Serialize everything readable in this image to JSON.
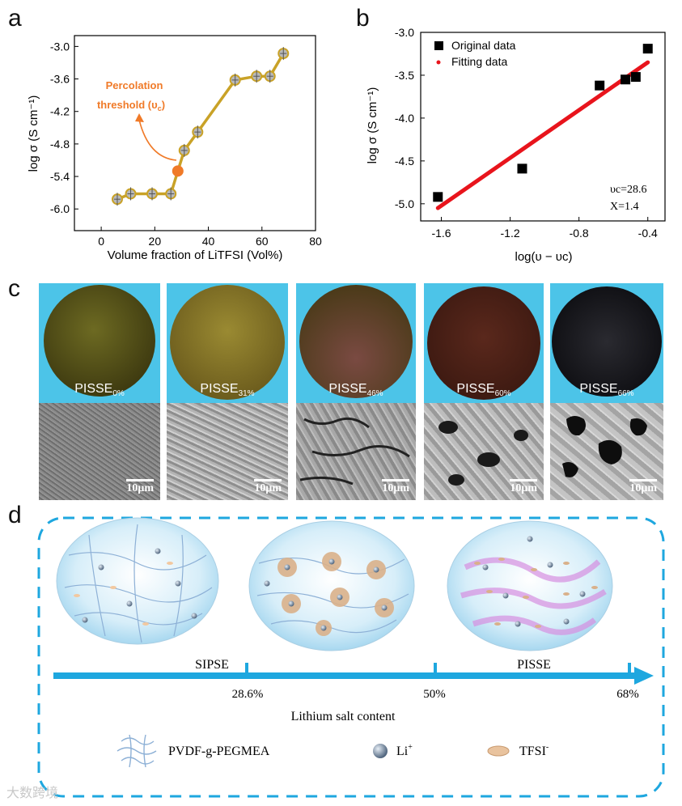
{
  "panels": {
    "a": "a",
    "b": "b",
    "c": "c",
    "d": "d"
  },
  "chart_data": [
    {
      "type": "line",
      "panel": "a",
      "xlabel": "Volume fraction of LiTFSI (Vol%)",
      "ylabel": "log σ (S cm⁻¹)",
      "x": [
        6,
        11,
        19,
        26,
        28.6,
        31,
        36,
        50,
        58,
        63,
        68
      ],
      "y": [
        -5.82,
        -5.72,
        -5.72,
        -5.72,
        -5.3,
        -4.92,
        -4.58,
        -3.62,
        -3.55,
        -3.55,
        -3.13
      ],
      "xlim": [
        -10,
        80
      ],
      "ylim": [
        -6.4,
        -2.8
      ],
      "xticks": [
        0,
        20,
        40,
        60,
        80
      ],
      "yticks": [
        -3.0,
        -3.6,
        -4.2,
        -4.8,
        -5.4,
        -6.0
      ],
      "ytick_labels": [
        "-3.0",
        "-3.6",
        "-4.2",
        "-4.8",
        "-5.4",
        "-6.0"
      ],
      "highlight": {
        "x": 28.6,
        "y": -5.3
      },
      "annotation_line1": "Percolation",
      "annotation_line2": "threshold (υ",
      "annotation_sub": "c",
      "annotation_close": ")",
      "line_color": "#c9a227",
      "marker_color": "#b8b8b8",
      "highlight_color": "#f07a28"
    },
    {
      "type": "scatter",
      "panel": "b",
      "xlabel": "log(υ − υc)",
      "ylabel": "log σ (S cm⁻¹)",
      "series": [
        {
          "name": "Original data",
          "x": [
            -1.62,
            -1.13,
            -0.68,
            -0.53,
            -0.47,
            -0.4
          ],
          "y": [
            -4.92,
            -4.59,
            -3.62,
            -3.55,
            -3.52,
            -3.19
          ]
        },
        {
          "name": "Fitting data",
          "x": [
            -1.62,
            -0.4
          ],
          "y": [
            -5.05,
            -3.35
          ]
        }
      ],
      "xlim": [
        -1.72,
        -0.3
      ],
      "ylim": [
        -5.2,
        -3.0
      ],
      "xticks": [
        -1.6,
        -1.2,
        -0.8,
        -0.4
      ],
      "xtick_labels": [
        "-1.6",
        "-1.2",
        "-0.8",
        "-0.4"
      ],
      "yticks": [
        -3.0,
        -3.5,
        -4.0,
        -4.5,
        -5.0
      ],
      "ytick_labels": [
        "-3.0",
        "-3.5",
        "-4.0",
        "-4.5",
        "-5.0"
      ],
      "legend": [
        "Original data",
        "Fitting data"
      ],
      "legend_position": "top-left",
      "note_vc": "υc=28.6",
      "note_x": "X=1.4",
      "fit_color": "#e8141c",
      "data_color": "#000000"
    }
  ],
  "photos": [
    {
      "label": "PISSE",
      "sub": "0%",
      "disc": "#5a5216",
      "scale": "10μm"
    },
    {
      "label": "PISSE",
      "sub": "31%",
      "disc": "#8a7a28",
      "scale": "10μm"
    },
    {
      "label": "PISSE",
      "sub": "46%",
      "disc": "#5a3a2a",
      "scale": "10μm"
    },
    {
      "label": "PISSE",
      "sub": "60%",
      "disc": "#4a2218",
      "scale": "10μm"
    },
    {
      "label": "PISSE",
      "sub": "66%",
      "disc": "#16161a",
      "scale": "10μm"
    }
  ],
  "scheme": {
    "axis_labels": [
      "SIPSE",
      "PISSE"
    ],
    "ticks": [
      "28.6%",
      "50%",
      "68%"
    ],
    "axis_title": "Lithium salt content",
    "legend": [
      {
        "name": "polymer-icon",
        "label": "PVDF-g-PEGMEA"
      },
      {
        "name": "li-ion-icon",
        "label": "Li",
        "sup": "+"
      },
      {
        "name": "tfsi-icon",
        "label": "TFSI",
        "sup": "-"
      }
    ],
    "accent": "#1ea7df"
  },
  "watermark": "大数跨境"
}
